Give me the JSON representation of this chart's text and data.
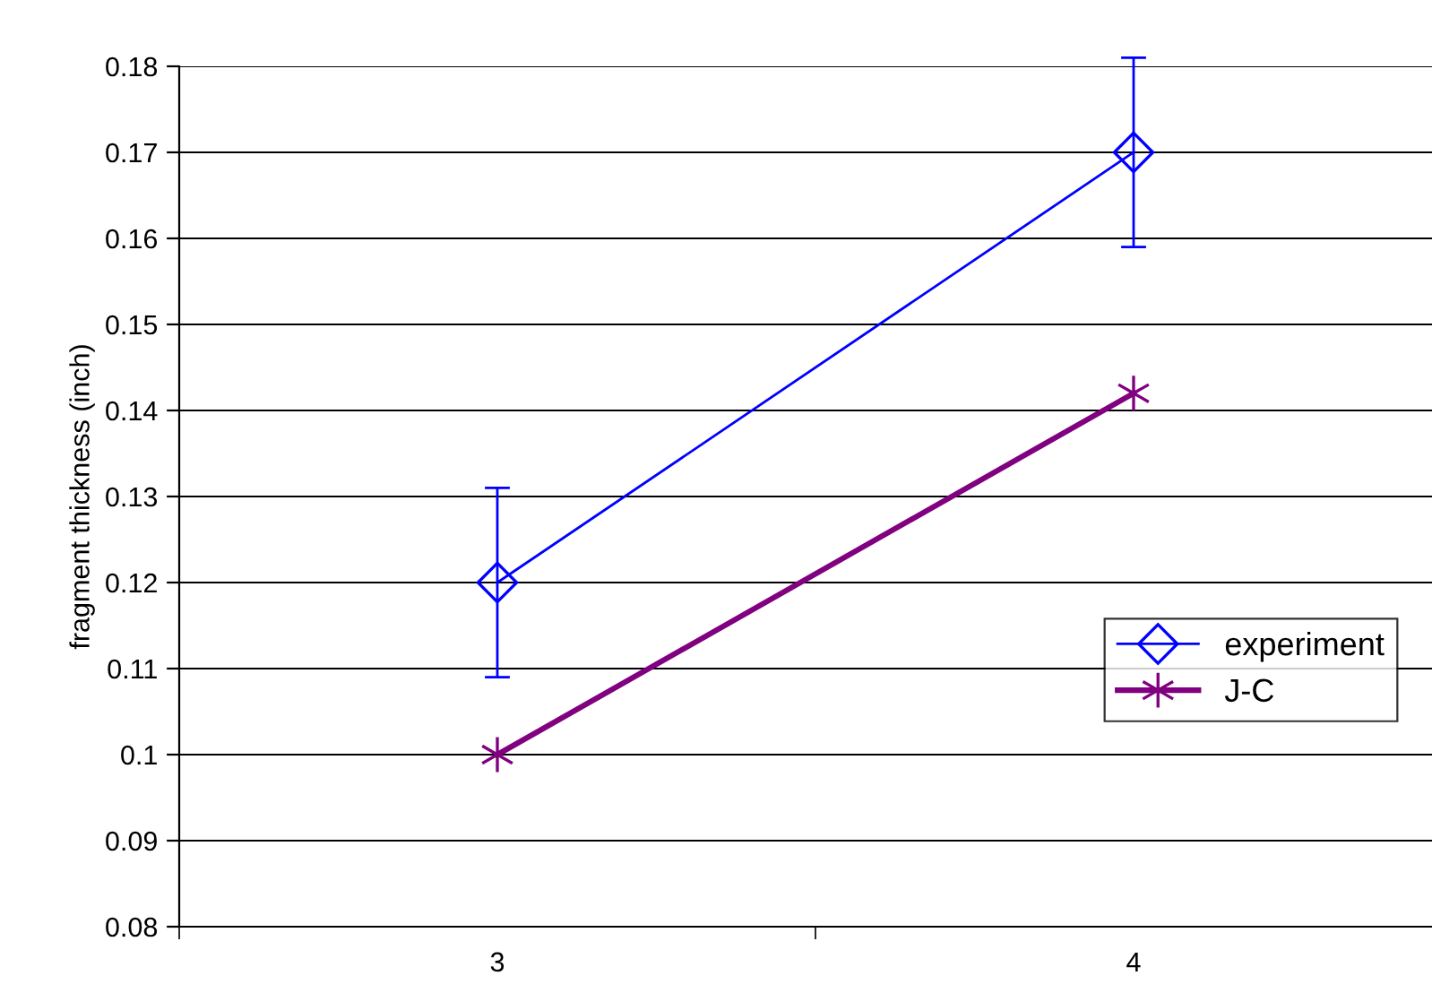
{
  "chart_data": {
    "type": "line",
    "ylabel": "fragment thickness (inch)",
    "categories": [
      "3",
      "4"
    ],
    "series": [
      {
        "name": "experiment",
        "color": "#0000ff",
        "values": [
          0.12,
          0.17
        ],
        "errors": [
          0.011,
          0.011
        ],
        "marker": "diamond"
      },
      {
        "name": "J-C",
        "color": "#800080",
        "values": [
          0.1,
          0.142
        ],
        "marker": "cross"
      }
    ],
    "ylim": [
      0.08,
      0.18
    ],
    "yticks": [
      0.08,
      0.09,
      0.1,
      0.11,
      0.12,
      0.13,
      0.14,
      0.15,
      0.16,
      0.17,
      0.18
    ],
    "grid": "y",
    "legend": "bottom right"
  }
}
